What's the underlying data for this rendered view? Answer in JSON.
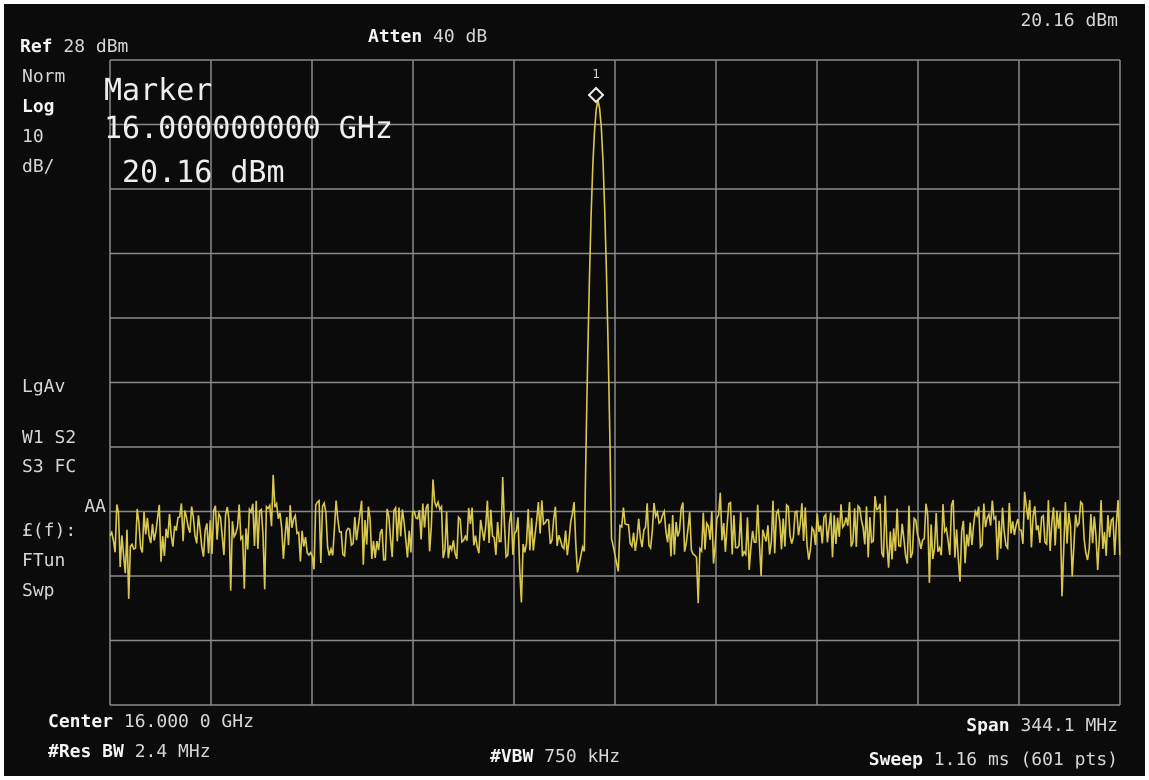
{
  "header": {
    "ref_label": "Ref",
    "ref_value": "28 dBm",
    "atten_label": "Atten",
    "atten_value": "40 dB",
    "marker_readout": "20.16 dBm"
  },
  "side_labels": [
    "Norm",
    "Log",
    "10",
    "dB/",
    "LgAv",
    "W1  S2",
    "S3  FC",
    "AA",
    "£(f):",
    "FTun",
    "Swp"
  ],
  "marker": {
    "number": "1",
    "title": "Marker",
    "frequency": "16.000000000 GHz",
    "level": "20.16 dBm"
  },
  "footer": {
    "center_label": "Center",
    "center_value": "16.000 0 GHz",
    "rbw_label": "#Res BW",
    "rbw_value": "2.4 MHz",
    "vbw_label": "#VBW",
    "vbw_value": "750 kHz",
    "span_label": "Span",
    "span_value": "344.1 MHz",
    "sweep_label": "Sweep",
    "sweep_value": "1.16 ms (601 pts)"
  }
}
